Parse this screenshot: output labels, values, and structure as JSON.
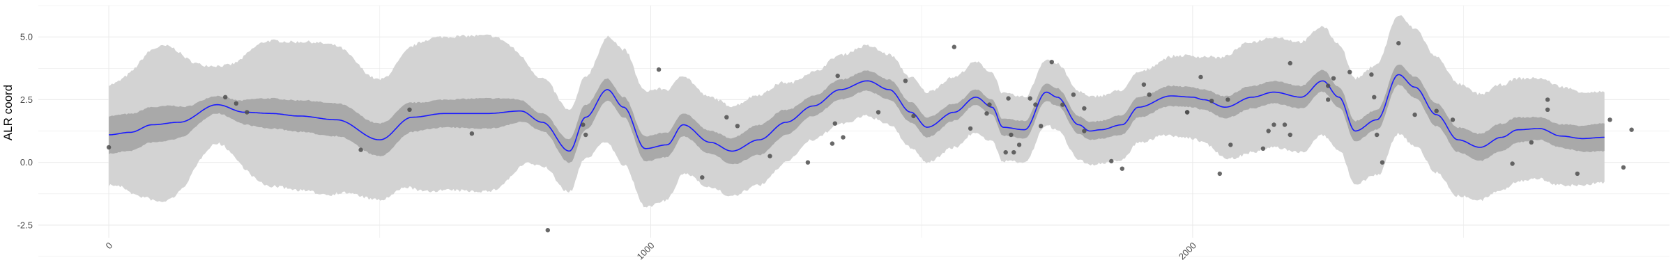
{
  "chart_data": {
    "type": "line",
    "title": "",
    "xlabel": "",
    "ylabel": "ALR coord",
    "xlim": [
      -130,
      2880
    ],
    "ylim": [
      -3.0,
      6.25
    ],
    "grid": true,
    "legend": "none",
    "x_ticks": [
      0,
      1000,
      2000
    ],
    "x_tick_labels": [
      "0",
      "1000",
      "2000"
    ],
    "y_ticks": [
      -2.5,
      0.0,
      2.5,
      5.0
    ],
    "y_tick_labels": [
      "-2.5",
      "0.0",
      "2.5",
      "5.0"
    ],
    "colors": {
      "line": "#1a1aff",
      "inner_band": "#a9a9a9",
      "outer_band": "#d3d3d3",
      "points": "#4d4d4d",
      "grid": "#ebebeb"
    },
    "series": [
      {
        "kind": "mean_line",
        "x": [
          0,
          40,
          80,
          130,
          200,
          250,
          300,
          350,
          420,
          500,
          560,
          620,
          700,
          760,
          800,
          850,
          880,
          920,
          950,
          990,
          1030,
          1060,
          1110,
          1150,
          1200,
          1250,
          1300,
          1350,
          1400,
          1440,
          1480,
          1510,
          1560,
          1600,
          1630,
          1650,
          1690,
          1730,
          1750,
          1790,
          1810,
          1830,
          1870,
          1900,
          1960,
          2000,
          2020,
          2060,
          2110,
          2150,
          2200,
          2240,
          2270,
          2300,
          2340,
          2380,
          2410,
          2450,
          2490,
          2530,
          2570,
          2600,
          2640,
          2680,
          2720,
          2760
        ],
        "y": [
          1.1,
          1.2,
          1.5,
          1.6,
          2.3,
          2.0,
          1.95,
          1.85,
          1.7,
          0.9,
          1.8,
          1.95,
          1.95,
          2.05,
          1.6,
          0.45,
          1.8,
          2.9,
          2.2,
          0.55,
          0.7,
          1.5,
          0.8,
          0.45,
          0.9,
          1.6,
          2.25,
          2.9,
          3.25,
          2.9,
          2.0,
          1.4,
          2.0,
          2.6,
          2.2,
          1.4,
          1.3,
          2.8,
          2.6,
          1.5,
          1.25,
          1.3,
          1.5,
          2.2,
          2.65,
          2.6,
          2.5,
          2.2,
          2.6,
          2.8,
          2.6,
          3.25,
          2.6,
          1.25,
          1.7,
          3.5,
          3.0,
          1.9,
          0.9,
          0.6,
          1.0,
          1.3,
          1.35,
          1.05,
          0.95,
          1.0
        ]
      },
      {
        "kind": "inner_band_halfwidth",
        "x": [
          0,
          100,
          200,
          300,
          400,
          500,
          600,
          700,
          800,
          870,
          950,
          1000,
          1100,
          1200,
          1300,
          1400,
          1500,
          1600,
          1700,
          1800,
          1900,
          2000,
          2100,
          2200,
          2300,
          2380,
          2450,
          2550,
          2650,
          2760
        ],
        "y": [
          0.75,
          0.7,
          0.35,
          0.6,
          0.65,
          0.65,
          0.55,
          0.6,
          0.35,
          0.5,
          0.4,
          0.5,
          0.45,
          0.6,
          0.4,
          0.4,
          0.4,
          0.3,
          0.35,
          0.35,
          0.4,
          0.4,
          0.45,
          0.45,
          0.4,
          0.4,
          0.45,
          0.55,
          0.45,
          0.55
        ]
      },
      {
        "kind": "outer_band_halfwidth",
        "x": [
          0,
          100,
          200,
          300,
          400,
          500,
          600,
          700,
          800,
          870,
          950,
          1000,
          1100,
          1200,
          1300,
          1400,
          1500,
          1600,
          1700,
          1800,
          1900,
          2000,
          2100,
          2200,
          2300,
          2380,
          2450,
          2550,
          2650,
          2760
        ],
        "y": [
          2.0,
          3.1,
          1.55,
          2.9,
          3.0,
          2.4,
          3.05,
          3.1,
          1.75,
          1.6,
          2.3,
          2.3,
          1.8,
          1.8,
          1.35,
          1.4,
          1.4,
          1.4,
          1.3,
          1.35,
          1.4,
          1.65,
          2.2,
          2.2,
          2.1,
          2.35,
          2.3,
          2.1,
          2.0,
          1.8
        ]
      },
      {
        "kind": "observed_points",
        "x": [
          0,
          215,
          235,
          255,
          465,
          555,
          670,
          810,
          875,
          880,
          1015,
          1095,
          1140,
          1160,
          1220,
          1290,
          1335,
          1340,
          1345,
          1355,
          1420,
          1470,
          1485,
          1560,
          1590,
          1620,
          1625,
          1655,
          1660,
          1665,
          1670,
          1680,
          1700,
          1710,
          1720,
          1740,
          1760,
          1780,
          1800,
          1800,
          1850,
          1870,
          1910,
          1920,
          1990,
          1990,
          2015,
          2035,
          2050,
          2065,
          2070,
          2130,
          2140,
          2150,
          2170,
          2180,
          2180,
          2250,
          2250,
          2260,
          2290,
          2330,
          2335,
          2340,
          2350,
          2380,
          2410,
          2450,
          2480,
          2590,
          2625,
          2655,
          2655,
          2710,
          2770,
          2795,
          2810
        ],
        "y": [
          0.6,
          2.6,
          2.35,
          2.0,
          0.5,
          2.1,
          1.15,
          -2.7,
          1.5,
          1.1,
          3.7,
          -0.6,
          1.8,
          1.45,
          0.25,
          0.0,
          0.75,
          1.55,
          3.45,
          1.0,
          2.0,
          3.25,
          1.85,
          4.6,
          1.35,
          1.95,
          2.3,
          0.4,
          2.55,
          1.1,
          0.4,
          0.7,
          2.55,
          2.3,
          1.45,
          4.0,
          2.3,
          2.7,
          2.15,
          1.25,
          0.05,
          -0.25,
          3.1,
          2.7,
          2.0,
          2.0,
          3.4,
          2.45,
          -0.45,
          2.5,
          0.7,
          0.55,
          1.25,
          1.5,
          1.5,
          3.95,
          1.1,
          3.05,
          2.5,
          3.35,
          3.6,
          3.5,
          2.6,
          1.1,
          0.0,
          4.75,
          1.9,
          2.05,
          1.7,
          -0.05,
          0.8,
          2.1,
          2.5,
          -0.45,
          1.7,
          -0.2,
          1.3
        ]
      }
    ]
  }
}
